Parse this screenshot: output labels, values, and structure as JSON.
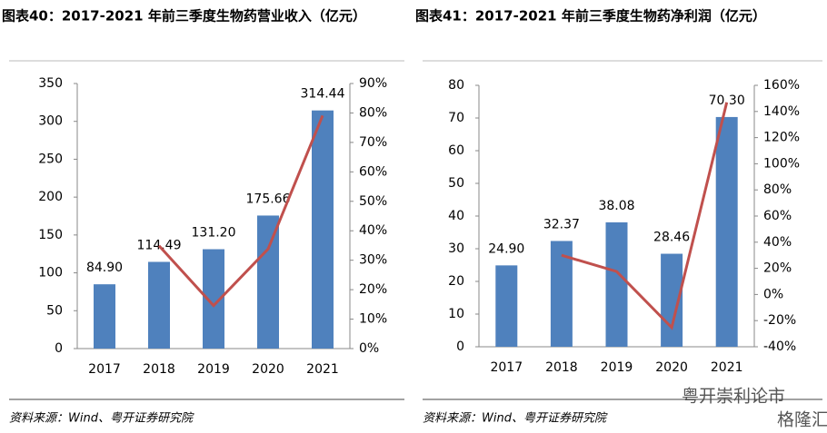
{
  "chart_data": [
    {
      "type": "bar-line",
      "title": "图表40：2017-2021 年前三季度生物药营业收入（亿元）",
      "categories": [
        "2017",
        "2018",
        "2019",
        "2020",
        "2021"
      ],
      "series": [
        {
          "type": "bar",
          "color": "#4f81bd",
          "values": [
            84.9,
            114.49,
            131.2,
            175.66,
            314.44
          ],
          "value_labels": [
            "84.90",
            "114.49",
            "131.20",
            "175.66",
            "314.44"
          ]
        },
        {
          "type": "line",
          "axis": "y2",
          "color": "#c0504d",
          "values": [
            null,
            34.9,
            14.6,
            33.8,
            79.1
          ]
        }
      ],
      "ylim": [
        0,
        350
      ],
      "yticks": [
        0,
        50,
        100,
        150,
        200,
        250,
        300,
        350
      ],
      "y2lim": [
        0,
        90
      ],
      "y2ticks": [
        {
          "value": 0,
          "label": "0%"
        },
        {
          "value": 10,
          "label": "10%"
        },
        {
          "value": 20,
          "label": "20%"
        },
        {
          "value": 30,
          "label": "30%"
        },
        {
          "value": 40,
          "label": "40%"
        },
        {
          "value": 50,
          "label": "50%"
        },
        {
          "value": 60,
          "label": "60%"
        },
        {
          "value": 70,
          "label": "70%"
        },
        {
          "value": 80,
          "label": "80%"
        },
        {
          "value": 90,
          "label": "90%"
        }
      ],
      "source": "资料来源：Wind、粤开证券研究院"
    },
    {
      "type": "bar-line",
      "title": "图表41：2017-2021 年前三季度生物药净利润（亿元）",
      "categories": [
        "2017",
        "2018",
        "2019",
        "2020",
        "2021"
      ],
      "series": [
        {
          "type": "bar",
          "color": "#4f81bd",
          "values": [
            24.9,
            32.37,
            38.08,
            28.46,
            70.3
          ],
          "value_labels": [
            "24.90",
            "32.37",
            "38.08",
            "28.46",
            "70.30"
          ]
        },
        {
          "type": "line",
          "axis": "y2",
          "color": "#c0504d",
          "values": [
            null,
            30.0,
            17.6,
            -25.3,
            147.0
          ]
        }
      ],
      "ylim": [
        0,
        80
      ],
      "yticks": [
        0,
        10,
        20,
        30,
        40,
        50,
        60,
        70,
        80
      ],
      "y2lim": [
        -40,
        160
      ],
      "y2ticks": [
        {
          "value": -40,
          "label": "-40%"
        },
        {
          "value": -20,
          "label": "-20%"
        },
        {
          "value": 0,
          "label": "0%"
        },
        {
          "value": 20,
          "label": "20%"
        },
        {
          "value": 40,
          "label": "40%"
        },
        {
          "value": 60,
          "label": "60%"
        },
        {
          "value": 80,
          "label": "80%"
        },
        {
          "value": 100,
          "label": "100%"
        },
        {
          "value": 120,
          "label": "120%"
        },
        {
          "value": 140,
          "label": "140%"
        },
        {
          "value": 160,
          "label": "160%"
        }
      ],
      "source": "资料来源：Wind、粤开证券研究院"
    }
  ],
  "watermark": {
    "text": "粤开崇利论市",
    "logo": "格隆汇"
  }
}
